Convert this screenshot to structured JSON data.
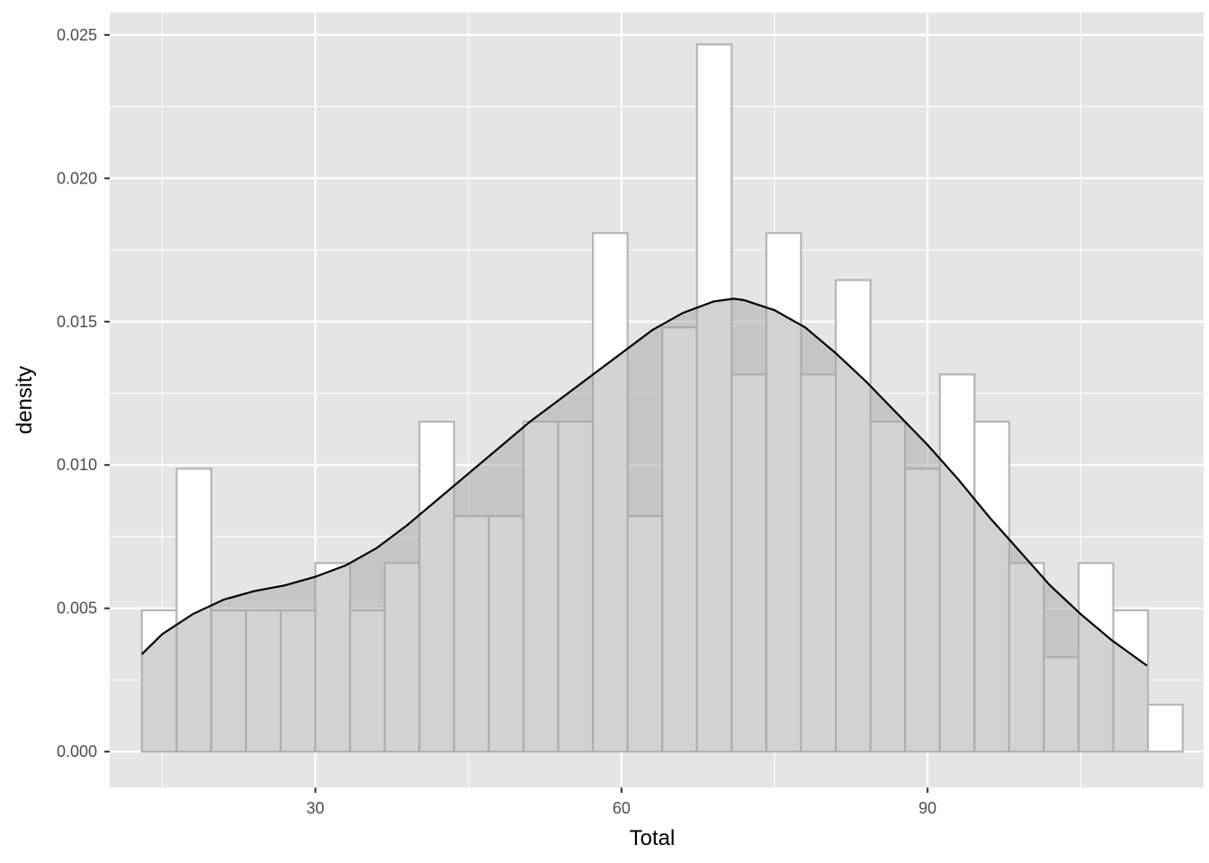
{
  "chart_data": {
    "type": "histogram",
    "xlabel": "Total",
    "ylabel": "density",
    "xlim": [
      9.85,
      117.05
    ],
    "ylim": [
      -0.00125,
      0.02578
    ],
    "x_ticks": [
      30,
      60,
      90
    ],
    "x_tick_labels": [
      "30",
      "60",
      "90"
    ],
    "y_ticks": [
      0,
      0.005,
      0.01,
      0.015,
      0.02,
      0.025
    ],
    "y_tick_labels": [
      "0.000",
      "0.005",
      "0.010",
      "0.015",
      "0.020",
      "0.025"
    ],
    "grid": true,
    "bin_width": 3.4,
    "bins": [
      {
        "x": 14.7,
        "density": 0.00493
      },
      {
        "x": 18.1,
        "density": 0.00987
      },
      {
        "x": 21.5,
        "density": 0.00493
      },
      {
        "x": 24.9,
        "density": 0.00493
      },
      {
        "x": 28.3,
        "density": 0.00493
      },
      {
        "x": 31.7,
        "density": 0.00658
      },
      {
        "x": 35.1,
        "density": 0.00493
      },
      {
        "x": 38.5,
        "density": 0.00658
      },
      {
        "x": 41.9,
        "density": 0.01151
      },
      {
        "x": 45.3,
        "density": 0.00822
      },
      {
        "x": 48.7,
        "density": 0.00822
      },
      {
        "x": 52.1,
        "density": 0.01151
      },
      {
        "x": 55.5,
        "density": 0.01151
      },
      {
        "x": 58.9,
        "density": 0.01809
      },
      {
        "x": 62.3,
        "density": 0.00822
      },
      {
        "x": 65.7,
        "density": 0.0148
      },
      {
        "x": 69.1,
        "density": 0.02467
      },
      {
        "x": 72.5,
        "density": 0.01316
      },
      {
        "x": 75.9,
        "density": 0.01809
      },
      {
        "x": 79.3,
        "density": 0.01316
      },
      {
        "x": 82.7,
        "density": 0.01645
      },
      {
        "x": 86.1,
        "density": 0.01151
      },
      {
        "x": 89.5,
        "density": 0.00987
      },
      {
        "x": 92.9,
        "density": 0.01316
      },
      {
        "x": 96.3,
        "density": 0.01151
      },
      {
        "x": 99.7,
        "density": 0.00658
      },
      {
        "x": 103.1,
        "density": 0.00329
      },
      {
        "x": 106.5,
        "density": 0.00658
      },
      {
        "x": 109.9,
        "density": 0.00493
      },
      {
        "x": 113.3,
        "density": 0.00164
      }
    ],
    "density_curve": {
      "x": [
        13,
        15,
        18,
        21,
        24,
        27,
        30,
        33,
        36,
        39,
        42,
        45,
        48,
        51,
        54,
        57,
        60,
        63,
        66,
        69,
        71,
        72,
        75,
        78,
        81,
        84,
        87,
        90,
        93,
        96,
        99,
        102,
        105,
        108,
        111.5
      ],
      "y": [
        0.0034,
        0.0041,
        0.0048,
        0.0053,
        0.0056,
        0.0058,
        0.0061,
        0.0065,
        0.0071,
        0.0079,
        0.0088,
        0.0097,
        0.0106,
        0.0115,
        0.0123,
        0.0131,
        0.0139,
        0.0147,
        0.0153,
        0.0157,
        0.0158,
        0.01575,
        0.0154,
        0.0148,
        0.0139,
        0.0129,
        0.0118,
        0.0107,
        0.0095,
        0.0082,
        0.007,
        0.0058,
        0.0048,
        0.0039,
        0.003
      ]
    },
    "colors": {
      "panel_background": "#e5e5e5",
      "grid_line": "#ffffff",
      "bar_fill": "#ffffff",
      "bar_stroke": "#b5b5b5",
      "density_fill": "#a6a6a6",
      "curve": "#000000",
      "tick": "#333333"
    }
  }
}
